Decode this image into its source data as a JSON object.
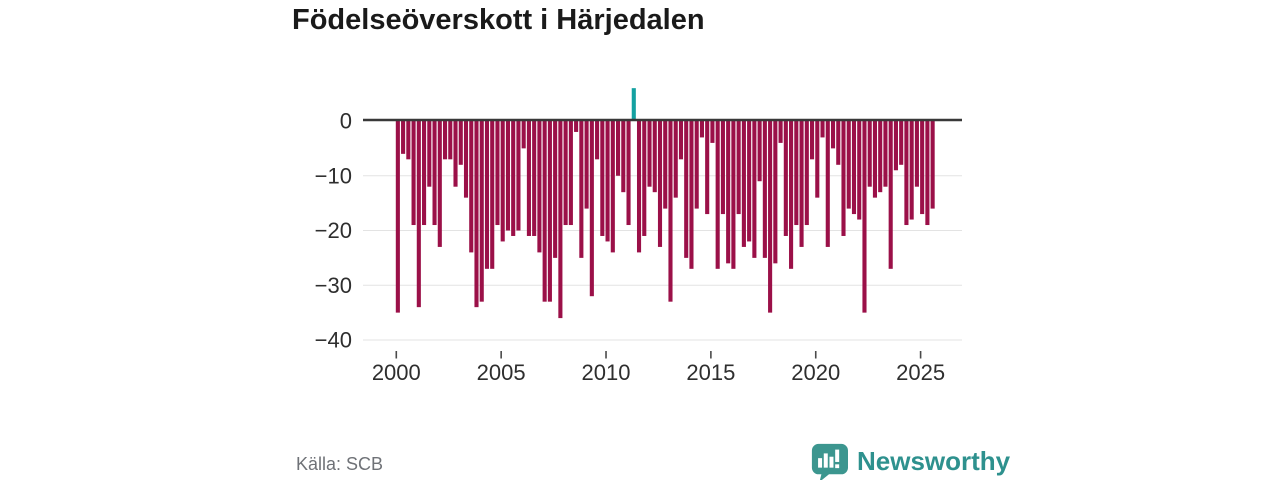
{
  "title": "Födelseöverskott i Härjedalen",
  "source": "Källa: SCB",
  "logo": {
    "text": "Newsworthy",
    "icon": "newsworthy-speech-bubble-bar-chart-icon"
  },
  "colors": {
    "background": "#ffffff",
    "bar_negative": "#9b1048",
    "bar_positive": "#14a1a1",
    "zero_line": "#383838",
    "gridline": "#e3e3e3",
    "tick_mark": "#4a4a4a",
    "axis_text": "#2e2e2e",
    "title_text": "#1a1a1a",
    "source_text": "#6f7277",
    "logo_teal": "#2e918e",
    "logo_icon_teal": "#3c968f"
  },
  "chart_data": {
    "type": "bar",
    "title": "Födelseöverskott i Härjedalen",
    "frequency": "quarterly",
    "x_start": "2000 Q1",
    "x_end": "2025 Q3",
    "x_tick_years": [
      2000,
      2005,
      2010,
      2015,
      2020,
      2025
    ],
    "x_tick_labels": [
      "2000",
      "2005",
      "2010",
      "2015",
      "2020",
      "2025"
    ],
    "y_ticks": [
      0,
      -10,
      -20,
      -30,
      -40
    ],
    "y_tick_labels": [
      "0",
      "−10",
      "−20",
      "−30",
      "−40"
    ],
    "ylim": [
      -40,
      7
    ],
    "grid": true,
    "legend": "none",
    "positive_highlight": {
      "label": "2011 Q2",
      "value": 6
    },
    "values": [
      -35,
      -6,
      -7,
      -19,
      -34,
      -19,
      -12,
      -19,
      -23,
      -7,
      -7,
      -12,
      -8,
      -14,
      -24,
      -34,
      -33,
      -27,
      -27,
      -19,
      -22,
      -20,
      -21,
      -20,
      -5,
      -21,
      -21,
      -24,
      -33,
      -33,
      -25,
      -36,
      -19,
      -19,
      -2,
      -25,
      -16,
      -32,
      -7,
      -21,
      -22,
      -24,
      -10,
      -13,
      -19,
      6,
      -24,
      -21,
      -12,
      -13,
      -23,
      -16,
      -33,
      -14,
      -7,
      -25,
      -27,
      -16,
      -3,
      -17,
      -4,
      -27,
      -17,
      -26,
      -27,
      -17,
      -23,
      -22,
      -25,
      -11,
      -25,
      -35,
      -26,
      -4,
      -21,
      -27,
      -19,
      -23,
      -19,
      -7,
      -14,
      -3,
      -23,
      -5,
      -8,
      -21,
      -16,
      -17,
      -18,
      -35,
      -12,
      -14,
      -13,
      -12,
      -27,
      -9,
      -8,
      -19,
      -18,
      -12,
      -17,
      -19,
      -16
    ]
  }
}
